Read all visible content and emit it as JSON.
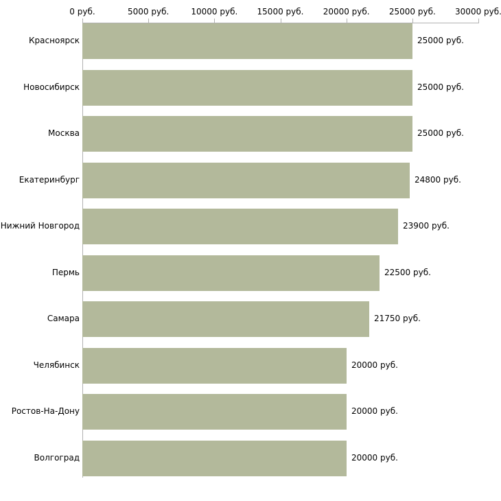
{
  "chart_data": {
    "type": "bar",
    "orientation": "horizontal",
    "title": "",
    "xlabel": "",
    "ylabel": "",
    "categories": [
      "Красноярск",
      "Новосибирск",
      "Москва",
      "Екатеринбург",
      "Нижний Новгород",
      "Пермь",
      "Самара",
      "Челябинск",
      "Ростов-На-Дону",
      "Волгоград"
    ],
    "values": [
      25000,
      25000,
      25000,
      24800,
      23900,
      22500,
      21750,
      20000,
      20000,
      20000
    ],
    "value_labels": [
      "25000 руб.",
      "25000 руб.",
      "25000 руб.",
      "24800 руб.",
      "23900 руб.",
      "22500 руб.",
      "21750 руб.",
      "20000 руб.",
      "20000 руб.",
      "20000 руб."
    ],
    "x_ticks": [
      0,
      5000,
      10000,
      15000,
      20000,
      25000,
      30000
    ],
    "x_tick_labels": [
      "0 руб.",
      "5000 руб.",
      "10000 руб.",
      "15000 руб.",
      "20000 руб.",
      "25000 руб.",
      "30000 руб."
    ],
    "xlim": [
      0,
      30000
    ],
    "grid": false,
    "legend_position": "none",
    "bar_color": "#b3b99b",
    "axis_color": "#b0b0b0",
    "background_color": "#ffffff"
  }
}
